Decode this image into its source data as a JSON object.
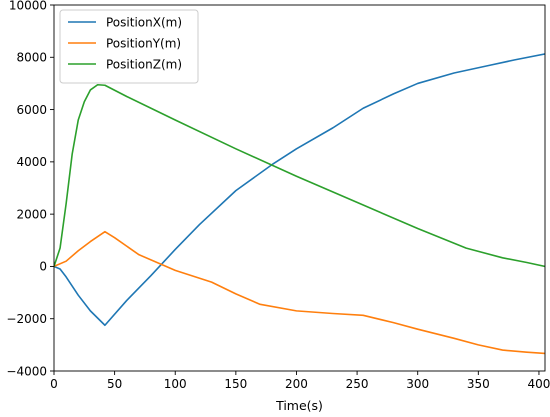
{
  "chart_data": {
    "type": "line",
    "title": "",
    "xlabel": "Time(s)",
    "ylabel": "",
    "xlim": [
      0,
      405
    ],
    "ylim": [
      -4000,
      10000
    ],
    "x_ticks": [
      0,
      50,
      100,
      150,
      200,
      250,
      300,
      350,
      400
    ],
    "y_ticks": [
      -4000,
      -2000,
      0,
      2000,
      4000,
      6000,
      8000,
      10000
    ],
    "grid": false,
    "legend_position": "top-left",
    "series": [
      {
        "name": "PositionX(m)",
        "color": "#1f77b4",
        "points": [
          [
            0,
            0
          ],
          [
            5,
            -100
          ],
          [
            10,
            -400
          ],
          [
            20,
            -1100
          ],
          [
            30,
            -1700
          ],
          [
            42,
            -2250
          ],
          [
            60,
            -1300
          ],
          [
            80,
            -350
          ],
          [
            100,
            650
          ],
          [
            120,
            1600
          ],
          [
            150,
            2900
          ],
          [
            180,
            3900
          ],
          [
            200,
            4500
          ],
          [
            230,
            5300
          ],
          [
            255,
            6050
          ],
          [
            280,
            6600
          ],
          [
            300,
            7000
          ],
          [
            330,
            7400
          ],
          [
            360,
            7700
          ],
          [
            380,
            7900
          ],
          [
            405,
            8130
          ]
        ]
      },
      {
        "name": "PositionY(m)",
        "color": "#ff7f0e",
        "points": [
          [
            0,
            0
          ],
          [
            10,
            200
          ],
          [
            20,
            600
          ],
          [
            30,
            950
          ],
          [
            42,
            1330
          ],
          [
            50,
            1100
          ],
          [
            70,
            450
          ],
          [
            90,
            50
          ],
          [
            100,
            -150
          ],
          [
            130,
            -600
          ],
          [
            150,
            -1050
          ],
          [
            170,
            -1450
          ],
          [
            200,
            -1700
          ],
          [
            230,
            -1800
          ],
          [
            255,
            -1870
          ],
          [
            280,
            -2150
          ],
          [
            300,
            -2400
          ],
          [
            330,
            -2750
          ],
          [
            350,
            -3000
          ],
          [
            370,
            -3200
          ],
          [
            390,
            -3280
          ],
          [
            405,
            -3330
          ]
        ]
      },
      {
        "name": "PositionZ(m)",
        "color": "#2ca02c",
        "points": [
          [
            0,
            0
          ],
          [
            5,
            700
          ],
          [
            10,
            2400
          ],
          [
            15,
            4300
          ],
          [
            20,
            5600
          ],
          [
            25,
            6300
          ],
          [
            30,
            6750
          ],
          [
            36,
            6950
          ],
          [
            42,
            6930
          ],
          [
            60,
            6500
          ],
          [
            100,
            5600
          ],
          [
            150,
            4500
          ],
          [
            200,
            3450
          ],
          [
            250,
            2450
          ],
          [
            300,
            1450
          ],
          [
            340,
            700
          ],
          [
            370,
            330
          ],
          [
            390,
            150
          ],
          [
            405,
            0
          ]
        ]
      }
    ]
  }
}
